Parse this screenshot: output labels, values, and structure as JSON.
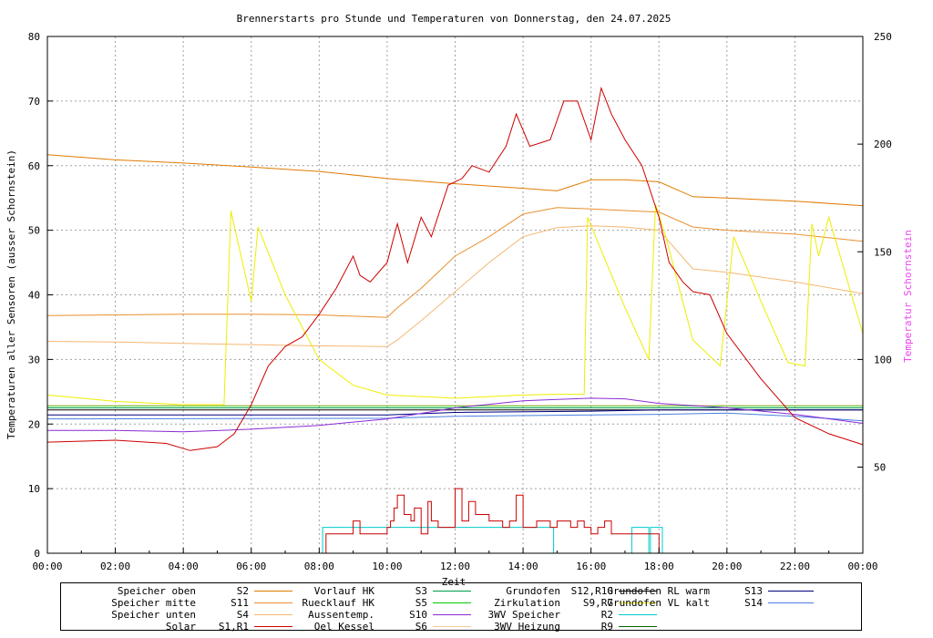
{
  "chart_data": {
    "type": "line",
    "title": "Brennerstarts pro Stunde und Temperaturen von Donnerstag, den 24.07.2025",
    "xlabel": "Zeit",
    "ylabel": "Temperaturen aller Sensoren (ausser Schornstein)",
    "y2label": "Temperatur Schornstein",
    "xlim": [
      0,
      24
    ],
    "ylim": [
      0,
      80
    ],
    "y2lim": [
      10,
      250
    ],
    "grid": true,
    "x_ticks": [
      "00:00",
      "02:00",
      "04:00",
      "06:00",
      "08:00",
      "10:00",
      "12:00",
      "14:00",
      "16:00",
      "18:00",
      "20:00",
      "22:00",
      "00:00"
    ],
    "y_ticks": [
      "0",
      "10",
      "20",
      "30",
      "40",
      "50",
      "60",
      "70",
      "80"
    ],
    "y2_ticks": [
      "50",
      "100",
      "150",
      "200",
      "250"
    ],
    "series": [
      {
        "name": "Speicher oben",
        "sensor": "S2",
        "color": "#e07b00",
        "x": [
          0,
          2,
          4,
          6,
          8,
          10,
          12,
          14,
          15,
          16,
          17,
          18,
          19,
          20,
          22,
          24
        ],
        "y": [
          61.7,
          60.9,
          60.4,
          59.8,
          59.1,
          58.0,
          57.2,
          56.5,
          56.1,
          57.8,
          57.8,
          57.5,
          55.2,
          55.0,
          54.5,
          53.8
        ]
      },
      {
        "name": "Speicher mitte",
        "sensor": "S11",
        "color": "#e89030",
        "x": [
          0,
          2,
          4,
          6,
          8,
          10,
          10.3,
          11,
          12,
          13,
          14,
          15,
          16,
          18,
          19,
          20,
          22,
          24
        ],
        "y": [
          36.8,
          36.9,
          37.0,
          37.0,
          36.9,
          36.5,
          38,
          41,
          46,
          49,
          52.5,
          53.5,
          53.3,
          52.8,
          50.5,
          50.0,
          49.4,
          48.3
        ]
      },
      {
        "name": "Speicher unten",
        "sensor": "S4",
        "color": "#f3b875",
        "x": [
          0,
          2,
          4,
          6,
          8,
          10,
          10.3,
          11,
          12,
          13,
          14,
          15,
          16,
          17,
          18,
          19,
          20,
          22,
          24
        ],
        "y": [
          32.8,
          32.7,
          32.5,
          32.3,
          32.1,
          32.0,
          33,
          36,
          40.5,
          45,
          49,
          50.4,
          50.7,
          50.5,
          50.0,
          44,
          43.5,
          42,
          40.2
        ]
      },
      {
        "name": "Solar",
        "sensor": "S1,R1",
        "color": "#cc0000",
        "x": [
          0,
          2,
          3.5,
          4.2,
          5,
          5.5,
          6,
          6.5,
          7,
          7.5,
          8,
          8.5,
          9,
          9.2,
          9.5,
          10,
          10.3,
          10.6,
          11,
          11.3,
          11.8,
          12.2,
          12.5,
          13,
          13.5,
          13.8,
          14.2,
          14.8,
          15.2,
          15.6,
          16,
          16.3,
          16.6,
          17,
          17.5,
          18,
          18.3,
          18.7,
          19,
          19.5,
          20,
          21,
          22,
          23,
          24
        ],
        "y": [
          17.2,
          17.5,
          17.0,
          15.9,
          16.5,
          18.5,
          23,
          29,
          32,
          33.5,
          37,
          41,
          46,
          43,
          42,
          45,
          51,
          45,
          52,
          49,
          57,
          58,
          60,
          59,
          63,
          68,
          63,
          64,
          70,
          70,
          64,
          72,
          68,
          64,
          60,
          52,
          45,
          42,
          40.5,
          40,
          34,
          27,
          21,
          18.5,
          16.8
        ]
      },
      {
        "name": "Vorlauf HK",
        "sensor": "S3",
        "color": "#009b4a",
        "x": [
          0,
          24
        ],
        "y": [
          22.5,
          22.5
        ]
      },
      {
        "name": "Ruecklauf HK",
        "sensor": "S5",
        "color": "#00cc00",
        "x": [
          0,
          24
        ],
        "y": [
          22.8,
          22.8
        ]
      },
      {
        "name": "Aussentemp.",
        "sensor": "S10",
        "color": "#8a2bd6",
        "x": [
          0,
          2,
          4,
          6,
          8,
          10,
          12,
          14,
          15,
          16,
          17,
          18,
          20,
          22,
          24
        ],
        "y": [
          19.0,
          19.0,
          18.8,
          19.2,
          19.8,
          20.8,
          22.5,
          23.6,
          23.8,
          24.0,
          23.9,
          23.2,
          22.5,
          21.5,
          20.1
        ]
      },
      {
        "name": "Oel Kessel",
        "sensor": "S6",
        "color": "#f4c89a",
        "x": [
          0,
          24
        ],
        "y": [
          22.9,
          22.9
        ]
      },
      {
        "name": "Grundofen",
        "sensor": "S12,R10",
        "color": "#000000",
        "x": [
          0,
          24
        ],
        "y": [
          22.2,
          22.2
        ]
      },
      {
        "name": "Zirkulation",
        "sensor": "S9,R7",
        "color": "#eeee00",
        "x": [
          0,
          1,
          2,
          4,
          5.2,
          5.4,
          6,
          6.2,
          7,
          8,
          9,
          10,
          12,
          14,
          15,
          15.8,
          15.9,
          17,
          17.7,
          17.9,
          18.2,
          19,
          19.8,
          20.2,
          21,
          21.8,
          22.3,
          22.5,
          22.7,
          23,
          24
        ],
        "y": [
          24.5,
          24,
          23.5,
          23,
          23,
          53,
          39,
          50.5,
          40,
          30,
          26,
          24.5,
          24,
          24.5,
          24.6,
          24.6,
          52,
          38,
          30,
          54,
          49,
          33,
          29,
          49,
          39,
          29.5,
          29,
          51,
          46,
          52,
          34
        ]
      },
      {
        "name": "3WV Speicher",
        "sensor": "R2",
        "color": "#00cccc",
        "x": [
          0,
          8.1,
          8.1,
          14.9,
          14.9,
          17.2,
          17.2,
          17.7,
          17.7,
          17.75,
          17.75,
          18.1,
          18.1,
          24
        ],
        "y": [
          0,
          0,
          4,
          4,
          0,
          0,
          4,
          4,
          0,
          0,
          4,
          4,
          0,
          0
        ]
      },
      {
        "name": "3WV Heizung",
        "sensor": "R9",
        "color": "#006400",
        "x": [
          0,
          24
        ],
        "y": [
          0,
          0
        ]
      },
      {
        "name": "Grundofen RL warm",
        "sensor": "S13",
        "color": "#000080",
        "x": [
          0,
          10,
          12,
          16,
          18,
          24
        ],
        "y": [
          21.4,
          21.4,
          21.8,
          22.0,
          22.2,
          22.2
        ]
      },
      {
        "name": "Grundofen VL kalt",
        "sensor": "S14",
        "color": "#4a7fe0",
        "x": [
          0,
          10,
          12,
          18,
          20,
          22,
          24
        ],
        "y": [
          20.8,
          20.9,
          21.2,
          21.5,
          21.7,
          21.2,
          20.5
        ]
      }
    ],
    "brennerstarts": {
      "name": "Brennerstarts",
      "color": "#cc0000",
      "x": [
        8.2,
        8.6,
        9,
        9.2,
        9.5,
        10,
        10.1,
        10.2,
        10.3,
        10.5,
        10.7,
        10.8,
        11,
        11.2,
        11.3,
        11.5,
        11.7,
        12,
        12.2,
        12.4,
        12.6,
        12.8,
        13,
        13.2,
        13.4,
        13.6,
        13.8,
        14,
        14.2,
        14.4,
        14.6,
        14.8,
        15,
        15.2,
        15.4,
        15.6,
        15.8,
        16,
        16.2,
        16.4,
        16.6,
        16.8,
        17,
        17.2,
        17.5,
        17.8
      ],
      "y": [
        3,
        3,
        5,
        3,
        3,
        4,
        5,
        7,
        9,
        6,
        5,
        7,
        3,
        8,
        5,
        4,
        4,
        10,
        5,
        8,
        6,
        6,
        5,
        5,
        4,
        5,
        9,
        4,
        4,
        5,
        5,
        4,
        5,
        5,
        4,
        5,
        4,
        3,
        4,
        5,
        3,
        3,
        3,
        3,
        3,
        3
      ]
    }
  },
  "legend": [
    {
      "name": "Speicher oben",
      "sensor": "S2"
    },
    {
      "name": "Speicher mitte",
      "sensor": "S11"
    },
    {
      "name": "Speicher unten",
      "sensor": "S4"
    },
    {
      "name": "Solar",
      "sensor": "S1,R1"
    },
    {
      "name": "Vorlauf HK",
      "sensor": "S3"
    },
    {
      "name": "Ruecklauf HK",
      "sensor": "S5"
    },
    {
      "name": "Aussentemp.",
      "sensor": "S10"
    },
    {
      "name": "Oel Kessel",
      "sensor": "S6"
    },
    {
      "name": "Grundofen",
      "sensor": "S12,R10"
    },
    {
      "name": "Zirkulation",
      "sensor": "S9,R7"
    },
    {
      "name": "3WV Speicher",
      "sensor": "R2"
    },
    {
      "name": "3WV Heizung",
      "sensor": "R9"
    },
    {
      "name": "Grundofen RL warm",
      "sensor": "S13"
    },
    {
      "name": "Grundofen VL kalt",
      "sensor": "S14"
    }
  ]
}
